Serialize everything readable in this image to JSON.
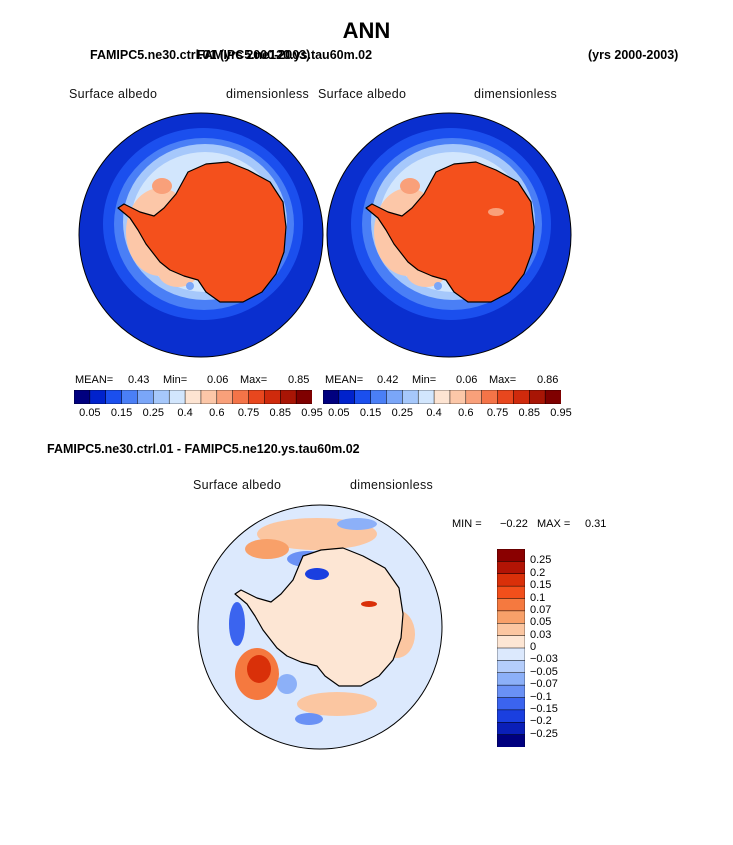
{
  "figure": {
    "title": "ANN",
    "case_top_left": "FAMIPC5.ne30.ctrl.01 (yrs 2000-2003)",
    "case_top_right_overlap": "FAMIPC5.ne120.ys.tau60m.02",
    "years_right": "(yrs 2000-2003)",
    "diff_title": "FAMIPC5.ne30.ctrl.01 - FAMIPC5.ne120.ys.tau60m.02"
  },
  "panels": [
    {
      "variable": "Surface albedo",
      "units": "dimensionless",
      "mean_label": "MEAN=",
      "mean": "0.43",
      "min_label": "Min=",
      "min": "0.06",
      "max_label": "Max=",
      "max": "0.85"
    },
    {
      "variable": "Surface albedo",
      "units": "dimensionless",
      "mean_label": "MEAN=",
      "mean": "0.42",
      "min_label": "Min=",
      "min": "0.06",
      "max_label": "Max=",
      "max": "0.86"
    }
  ],
  "colorbar_abs": {
    "ticks": [
      "0.05",
      "0.15",
      "0.25",
      "0.4",
      "0.6",
      "0.75",
      "0.85",
      "0.95"
    ],
    "colors": [
      "#00007f",
      "#0022cc",
      "#1b4fee",
      "#4a7ff6",
      "#7aa6f8",
      "#a6c8fb",
      "#d2e6fd",
      "#fde4d2",
      "#fcc7a8",
      "#f9a07a",
      "#f47448",
      "#e8471e",
      "#cf2a0c",
      "#a81505",
      "#7f0000"
    ]
  },
  "diff_panel": {
    "variable": "Surface albedo",
    "units": "dimensionless",
    "min_label": "MIN =",
    "min": "−0.22",
    "max_label": "MAX =",
    "max": "0.31"
  },
  "colorbar_diff": {
    "ticks": [
      "0.25",
      "0.2",
      "0.15",
      "0.1",
      "0.07",
      "0.05",
      "0.03",
      "0",
      "−0.03",
      "−0.05",
      "−0.07",
      "−0.1",
      "−0.15",
      "−0.2",
      "−0.25"
    ],
    "colors": [
      "#8a0000",
      "#b21405",
      "#d93009",
      "#f24f1b",
      "#f5793f",
      "#f8a069",
      "#fbc6a1",
      "#fde6d4",
      "#dce9fd",
      "#b4cdfb",
      "#8cb0f8",
      "#6a91f5",
      "#3b64ef",
      "#1a3fe0",
      "#0a1fb8",
      "#00007f"
    ]
  },
  "palette": {
    "ocean_dark": "#0a2fcf",
    "sea_ice_light": "#d6e7fd",
    "ice_sheet": "#f4501c",
    "coastline": "#000000"
  }
}
